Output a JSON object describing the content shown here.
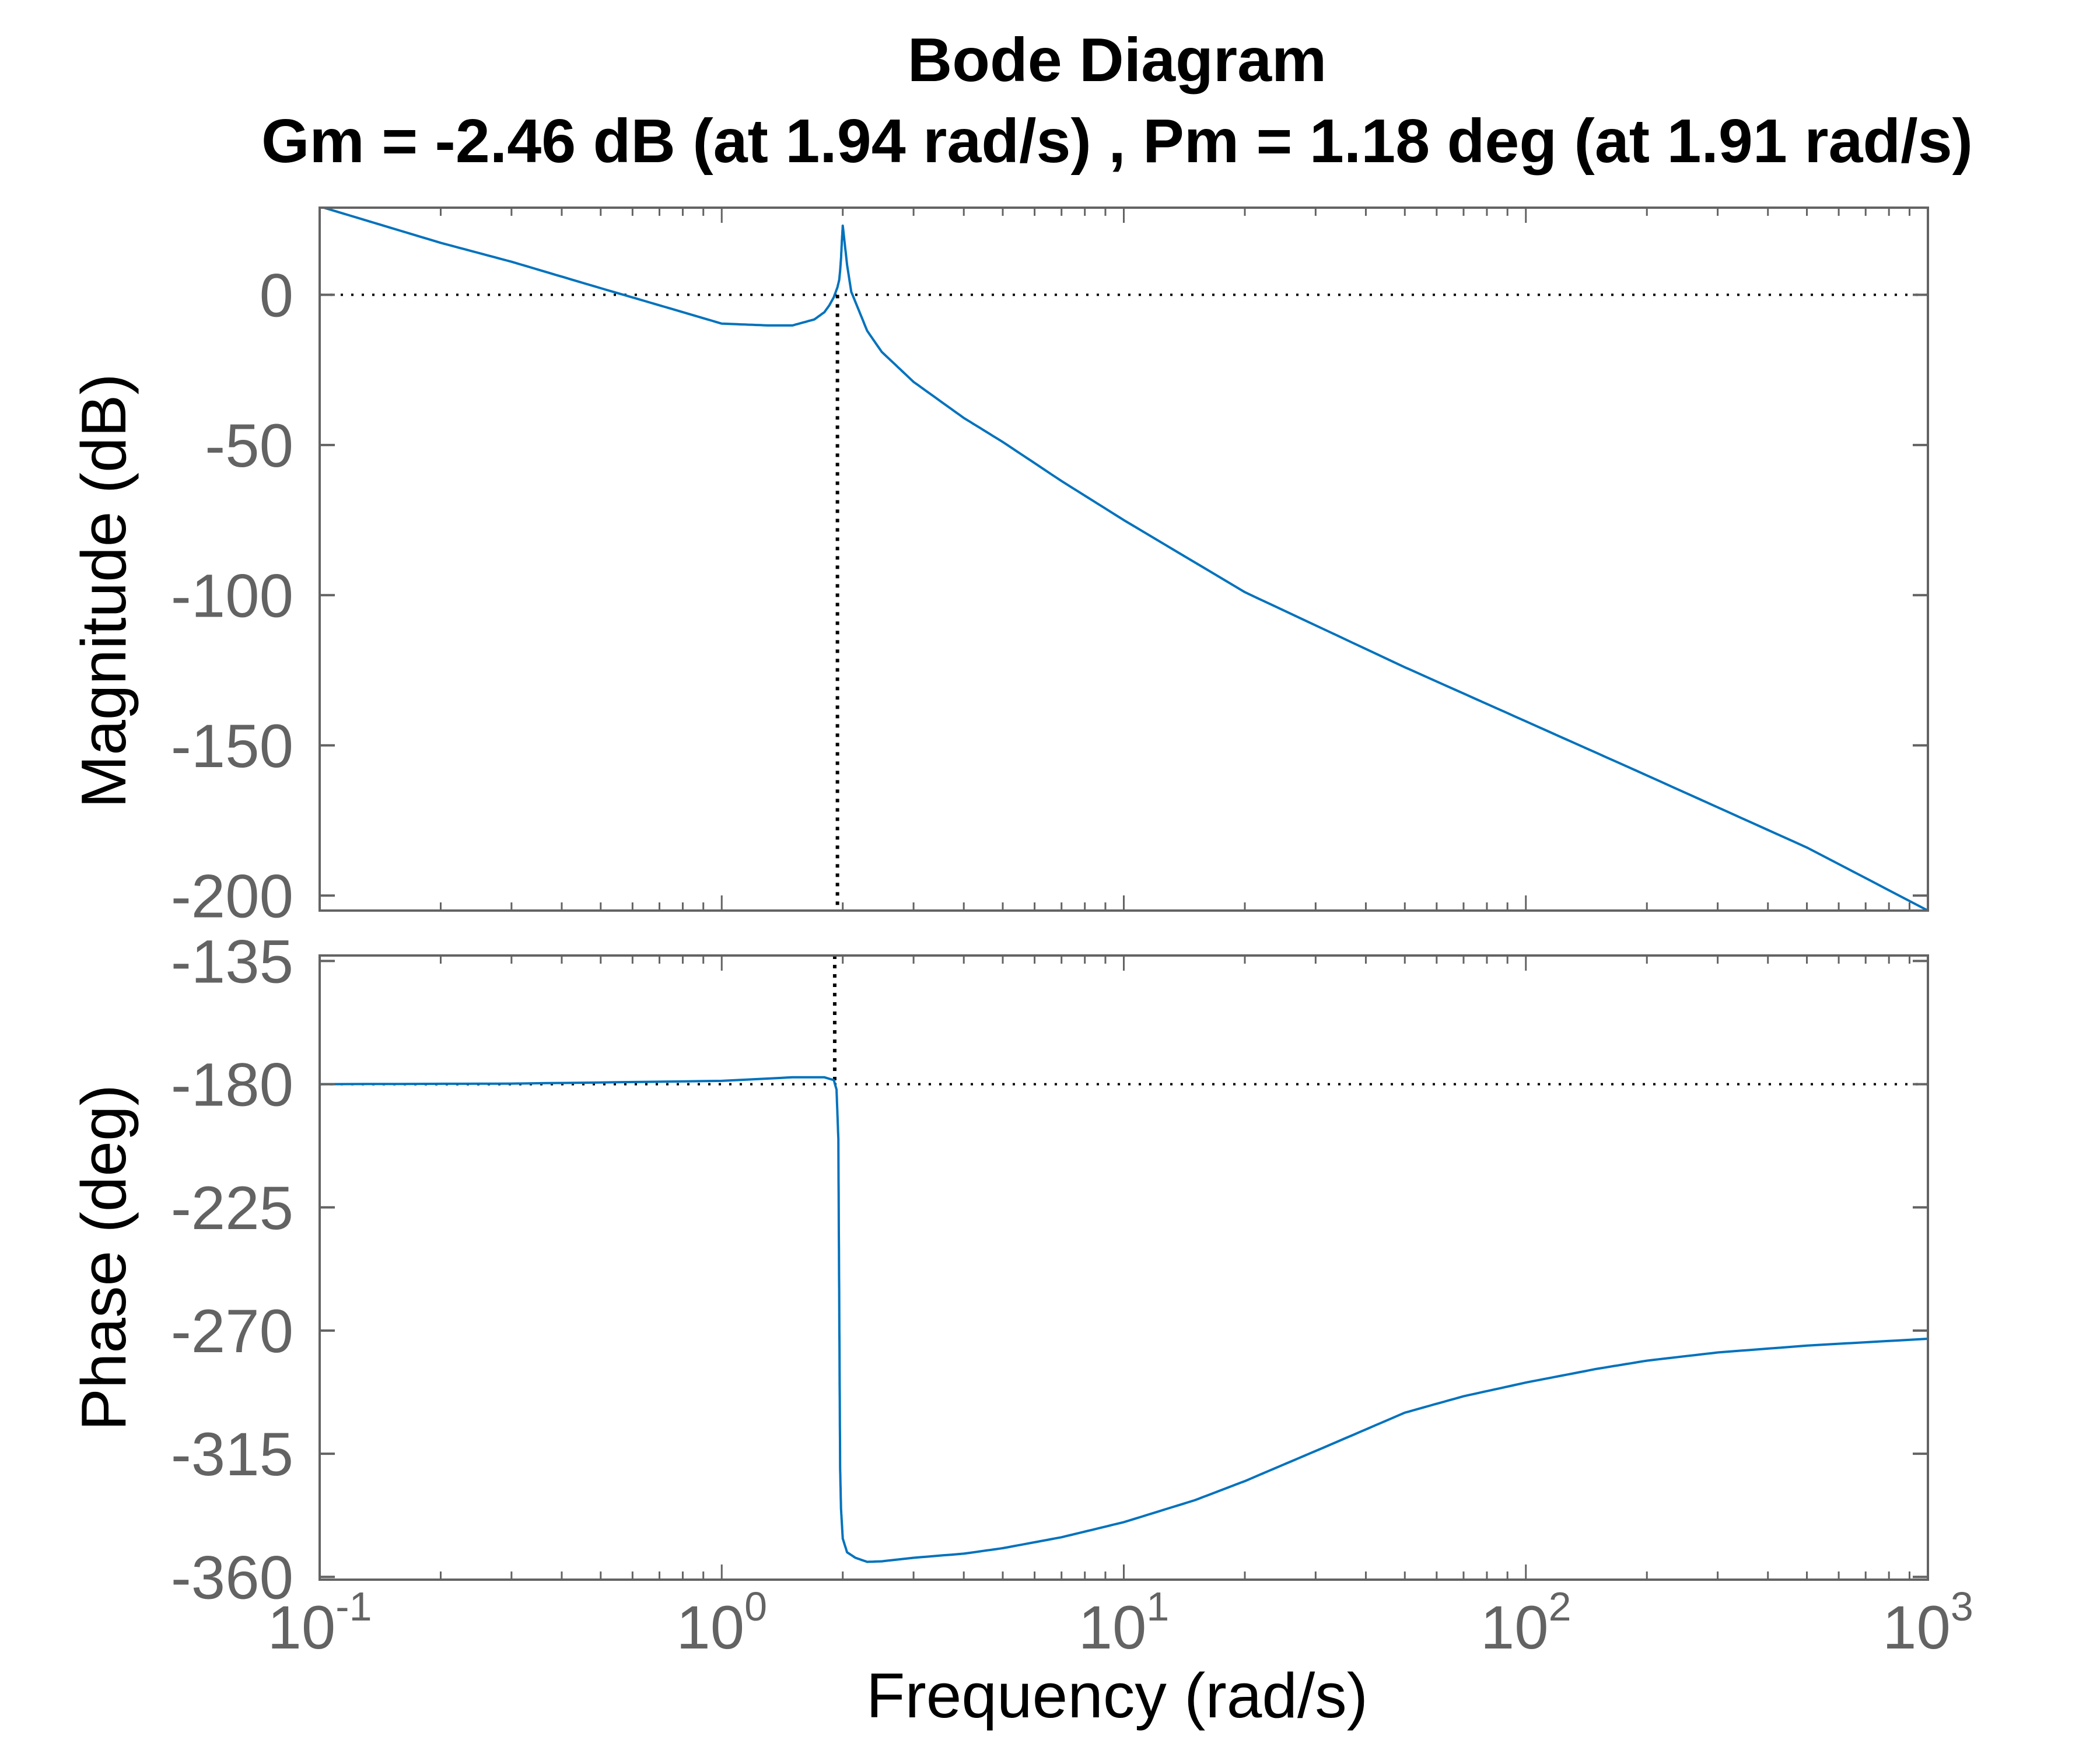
{
  "chart_data": {
    "type": "line",
    "title": "Bode Diagram",
    "subtitle": "Gm = -2.46 dB (at 1.94 rad/s) ,  Pm = 1.18 deg (at 1.91 rad/s)",
    "xlabel": "Frequency  (rad/s)",
    "x_scale": "log",
    "xlim": [
      0.1,
      1000
    ],
    "x_ticks": [
      {
        "base": "10",
        "exp": "-1",
        "value": 0.1
      },
      {
        "base": "10",
        "exp": "0",
        "value": 1
      },
      {
        "base": "10",
        "exp": "1",
        "value": 10
      },
      {
        "base": "10",
        "exp": "2",
        "value": 100
      },
      {
        "base": "10",
        "exp": "3",
        "value": 1000
      }
    ],
    "line_color": "#0072bd",
    "grid": false,
    "subplots": [
      {
        "name": "magnitude",
        "ylabel": "Magnitude (dB)",
        "ylim": [
          -205,
          29
        ],
        "y_ticks": [
          "0",
          "-50",
          "-100",
          "-150",
          "-200"
        ],
        "y_tick_values": [
          0,
          -50,
          -100,
          -150,
          -200
        ],
        "reference_line_y": 0,
        "series": [
          {
            "x": [
              0.1,
              0.2,
              0.3,
              0.5,
              0.7,
              1.0,
              1.3,
              1.5,
              1.7,
              1.8,
              1.85,
              1.9,
              1.94,
              1.96,
              1.97,
              1.98,
              1.99,
              2.0,
              2.05,
              2.1,
              2.3,
              2.5,
              3,
              4,
              5,
              7,
              10,
              20,
              50,
              100,
              200,
              500,
              1000
            ],
            "y": [
              29.4,
              17.3,
              11.0,
              2.2,
              -3.5,
              -9.6,
              -10.2,
              -10.2,
              -8.2,
              -5.8,
              -3.6,
              -0.8,
              2.5,
              5.0,
              8.0,
              12.0,
              18.0,
              23.0,
              10.0,
              1.0,
              -12.0,
              -19.0,
              -29.0,
              -41.0,
              -49.0,
              -62.0,
              -75.0,
              -99.0,
              -124.0,
              -142.0,
              -160.0,
              -184.0,
              -205.0
            ]
          }
        ]
      },
      {
        "name": "phase",
        "ylabel": "Phase (deg)",
        "ylim": [
          -361,
          -133
        ],
        "y_ticks": [
          "-135",
          "-180",
          "-225",
          "-270",
          "-315",
          "-360"
        ],
        "y_tick_values": [
          -135,
          -180,
          -225,
          -270,
          -315,
          -360
        ],
        "reference_line_y": -180,
        "series": [
          {
            "x": [
              0.1,
              0.3,
              1,
              1.5,
              1.8,
              1.9,
              1.93,
              1.95,
              1.96,
              1.97,
              1.98,
              2.0,
              2.05,
              2.15,
              2.3,
              2.5,
              3,
              4,
              5,
              7,
              10,
              15,
              20,
              30,
              50,
              70,
              100,
              150,
              200,
              300,
              500,
              1000
            ],
            "y": [
              -180,
              -179.8,
              -178.8,
              -177.5,
              -177.5,
              -178.5,
              -182,
              -200,
              -260,
              -320,
              -335,
              -346,
              -351,
              -353,
              -354.5,
              -354.3,
              -353,
              -351.5,
              -349.5,
              -345.5,
              -340,
              -332,
              -325,
              -314,
              -300,
              -294,
              -289,
              -284,
              -281,
              -278,
              -275.5,
              -273
            ]
          }
        ]
      }
    ],
    "crossover_markers": {
      "gain_margin_frequency": 1.94,
      "phase_margin_frequency": 1.91
    }
  }
}
